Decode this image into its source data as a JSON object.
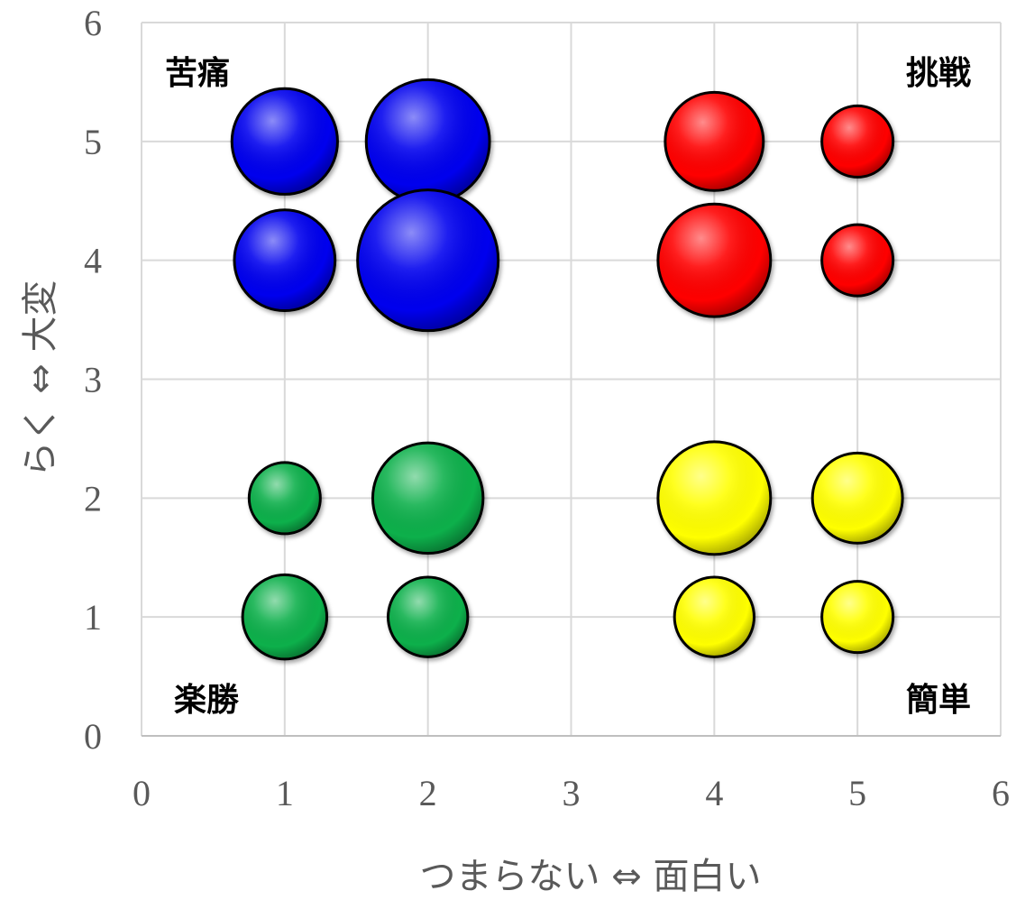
{
  "chart_data": {
    "type": "scatter",
    "variant": "bubble",
    "xlabel": "つまらない ⇔ 面白い",
    "ylabel": "らく ⇔ 大変",
    "xlim": [
      0,
      6
    ],
    "ylim": [
      0,
      6
    ],
    "x_ticks": [
      "0",
      "1",
      "2",
      "3",
      "4",
      "5",
      "6"
    ],
    "y_ticks": [
      "0",
      "1",
      "2",
      "3",
      "4",
      "5",
      "6"
    ],
    "grid": true,
    "quadrant_labels": {
      "top_left": "苦痛",
      "top_right": "挑戦",
      "bottom_left": "楽勝",
      "bottom_right": "簡単"
    },
    "series": [
      {
        "color": "#0000ee",
        "points": [
          {
            "x": 1,
            "y": 5,
            "size": 2.2
          },
          {
            "x": 2,
            "y": 5,
            "size": 3.0
          },
          {
            "x": 1,
            "y": 4,
            "size": 2.0
          },
          {
            "x": 2,
            "y": 4,
            "size": 3.9
          }
        ]
      },
      {
        "color": "#ff0000",
        "points": [
          {
            "x": 4,
            "y": 5,
            "size": 1.9
          },
          {
            "x": 5,
            "y": 5,
            "size": 1.0
          },
          {
            "x": 4,
            "y": 4,
            "size": 2.5
          },
          {
            "x": 5,
            "y": 4,
            "size": 1.0
          }
        ]
      },
      {
        "color": "#10b04b",
        "points": [
          {
            "x": 1,
            "y": 2,
            "size": 1.0
          },
          {
            "x": 2,
            "y": 2,
            "size": 2.4
          },
          {
            "x": 1,
            "y": 1,
            "size": 1.4
          },
          {
            "x": 2,
            "y": 1,
            "size": 1.25
          }
        ]
      },
      {
        "color": "#ffff00",
        "points": [
          {
            "x": 4,
            "y": 2,
            "size": 2.5
          },
          {
            "x": 5,
            "y": 2,
            "size": 1.6
          },
          {
            "x": 4,
            "y": 1,
            "size": 1.25
          },
          {
            "x": 5,
            "y": 1,
            "size": 1.0
          }
        ]
      }
    ]
  }
}
